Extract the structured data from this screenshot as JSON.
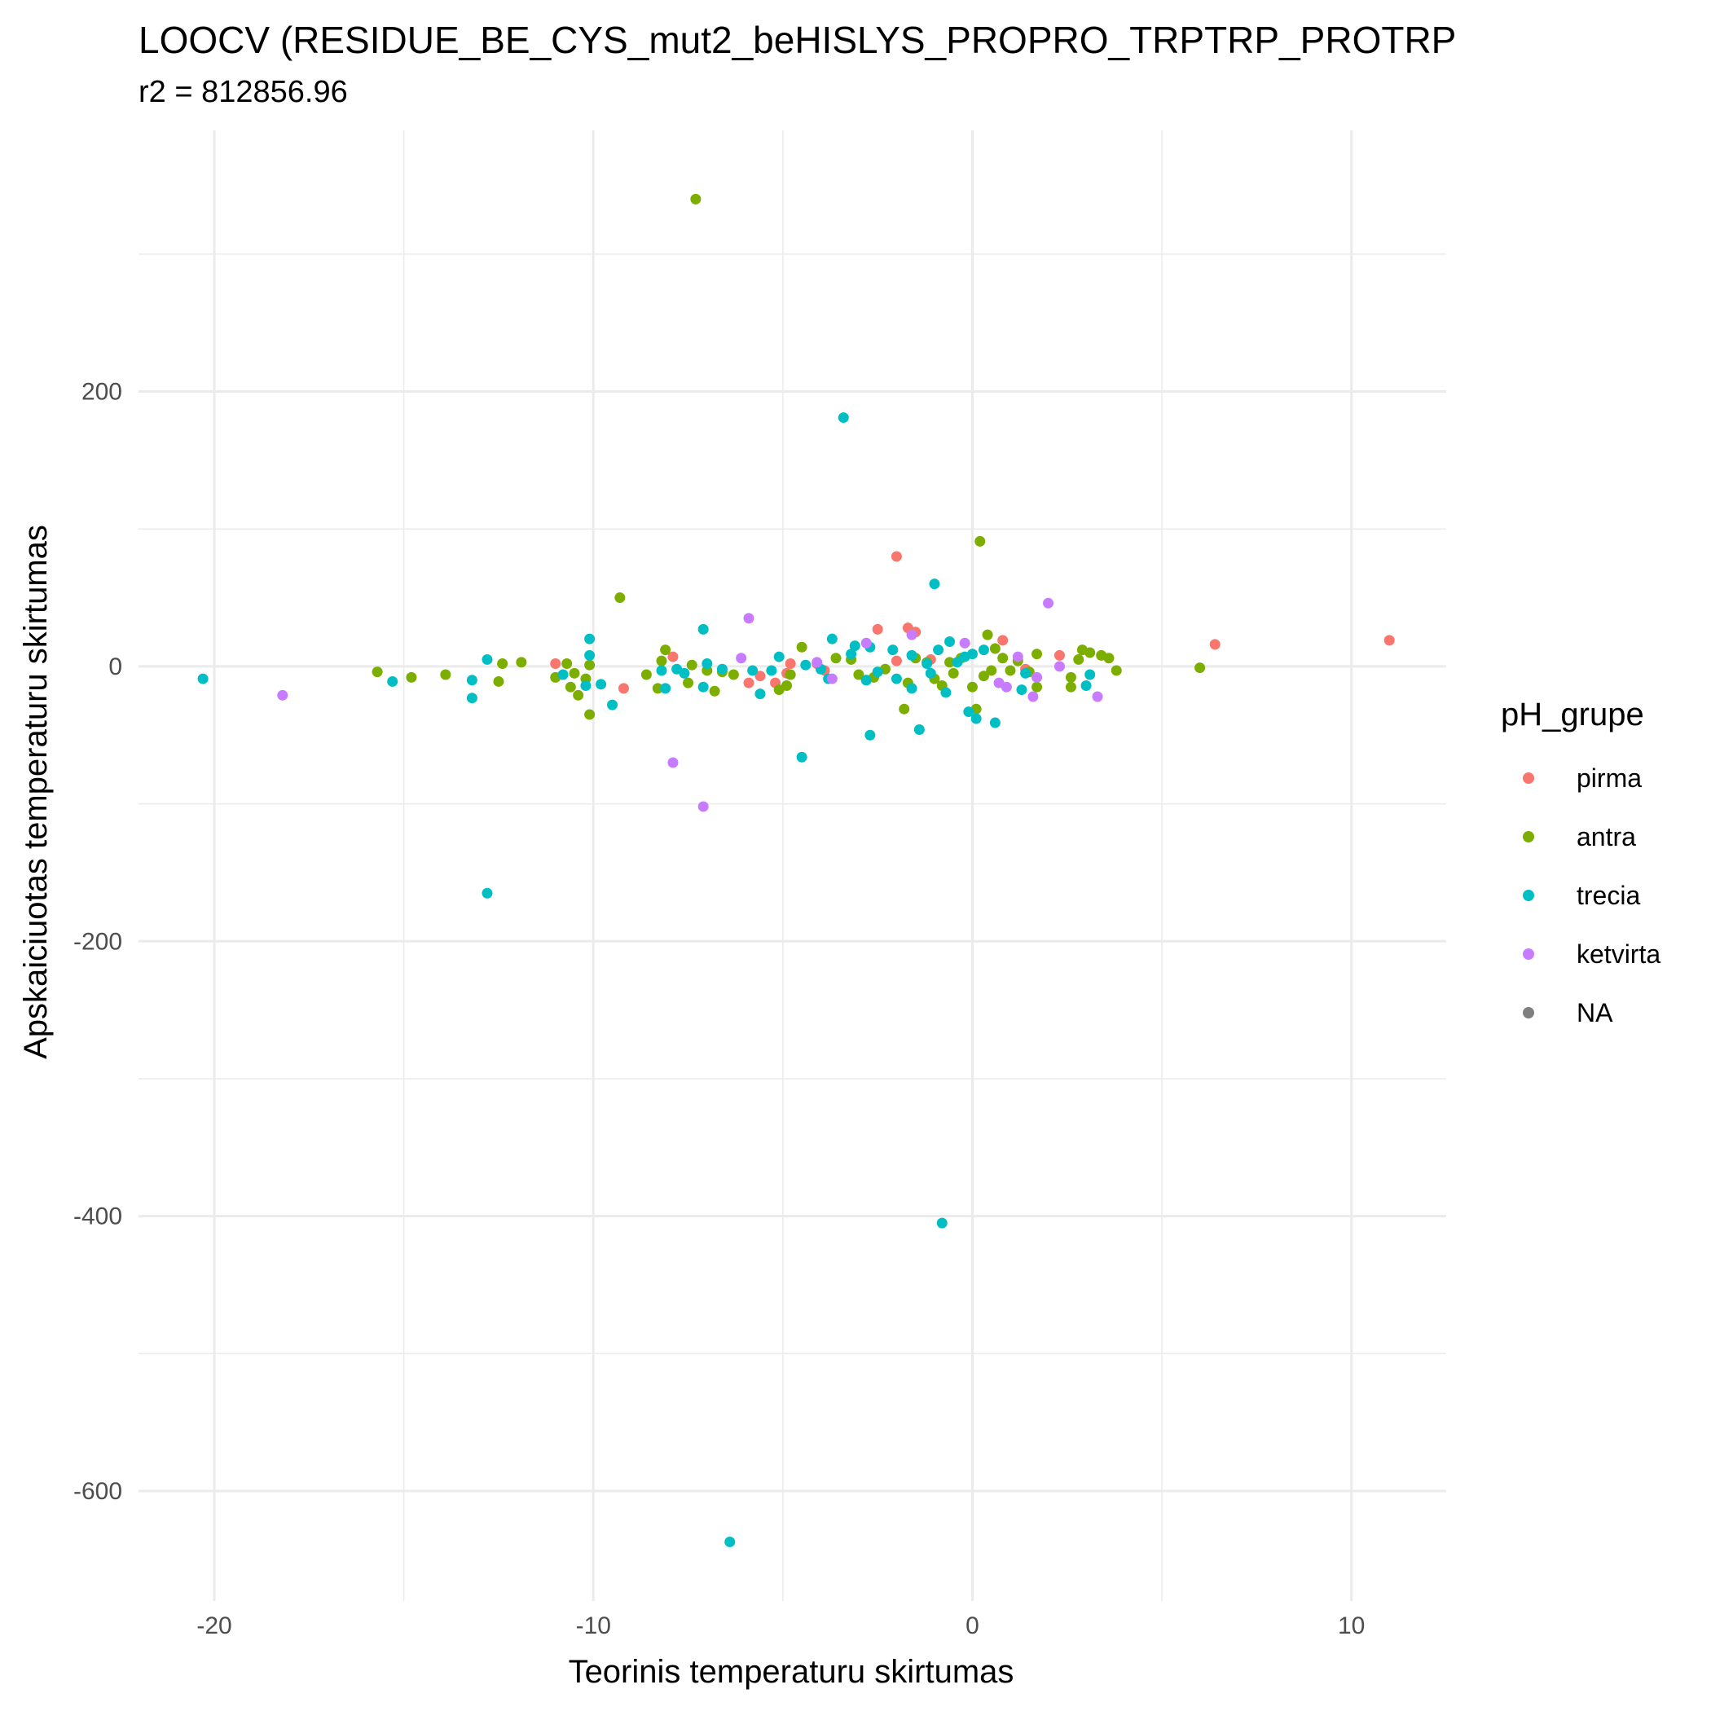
{
  "chart_data": {
    "type": "scatter",
    "title": "LOOCV (RESIDUE_BE_CYS_mut2_beHISLYS_PROPRO_TRPTRP_PROTRP",
    "subtitle": "r2 = 812856.96",
    "xlabel": "Teorinis temperaturu skirtumas",
    "ylabel": "Apskaiciuotas temperaturu skirtumas",
    "xlim": [
      -22,
      12.5
    ],
    "ylim": [
      -680,
      390
    ],
    "x_ticks": [
      -20,
      -10,
      0,
      10
    ],
    "y_ticks": [
      200,
      0,
      -200,
      -400,
      -600
    ],
    "grid": true,
    "legend": {
      "title": "pH_grupe",
      "position": "right",
      "entries": [
        {
          "label": "pirma",
          "color": "#F8766D"
        },
        {
          "label": "antra",
          "color": "#7CAE00"
        },
        {
          "label": "trecia",
          "color": "#00BFC4"
        },
        {
          "label": "ketvirta",
          "color": "#C77CFF"
        },
        {
          "label": "NA",
          "color": "#7F7F7F"
        }
      ]
    },
    "series": [
      {
        "name": "pirma",
        "color": "#F8766D",
        "points": [
          [
            -11.0,
            2
          ],
          [
            -9.2,
            -16
          ],
          [
            -7.9,
            7
          ],
          [
            -5.9,
            -12
          ],
          [
            -5.6,
            -7
          ],
          [
            -5.2,
            -12
          ],
          [
            -4.9,
            -5
          ],
          [
            -4.8,
            2
          ],
          [
            -4.1,
            2
          ],
          [
            -3.9,
            -3
          ],
          [
            -2.5,
            27
          ],
          [
            -2.0,
            80
          ],
          [
            -2.0,
            4
          ],
          [
            -1.7,
            28
          ],
          [
            -1.5,
            25
          ],
          [
            -1.1,
            5
          ],
          [
            0.8,
            19
          ],
          [
            1.4,
            -2
          ],
          [
            2.3,
            8
          ],
          [
            6.4,
            16
          ],
          [
            11.0,
            19
          ]
        ]
      },
      {
        "name": "antra",
        "color": "#7CAE00",
        "points": [
          [
            -7.3,
            340
          ],
          [
            -15.7,
            -4
          ],
          [
            -14.8,
            -8
          ],
          [
            -13.9,
            -6
          ],
          [
            -12.4,
            2
          ],
          [
            -12.5,
            -11
          ],
          [
            -11.9,
            3
          ],
          [
            -11.0,
            -8
          ],
          [
            -10.7,
            2
          ],
          [
            -10.6,
            -15
          ],
          [
            -10.5,
            -5
          ],
          [
            -10.4,
            -21
          ],
          [
            -10.2,
            -9
          ],
          [
            -10.1,
            1
          ],
          [
            -10.1,
            -35
          ],
          [
            -9.3,
            50
          ],
          [
            -8.6,
            -6
          ],
          [
            -8.3,
            -16
          ],
          [
            -8.2,
            4
          ],
          [
            -8.1,
            12
          ],
          [
            -7.5,
            -12
          ],
          [
            -7.4,
            1
          ],
          [
            -7.0,
            -3
          ],
          [
            -6.8,
            -18
          ],
          [
            -6.6,
            -4
          ],
          [
            -6.3,
            -6
          ],
          [
            -5.1,
            -17
          ],
          [
            -4.9,
            -14
          ],
          [
            -4.8,
            -6
          ],
          [
            -4.5,
            14
          ],
          [
            -3.6,
            6
          ],
          [
            -3.2,
            5
          ],
          [
            -3.0,
            -6
          ],
          [
            -2.8,
            -10
          ],
          [
            -2.6,
            -8
          ],
          [
            -2.3,
            -2
          ],
          [
            -1.8,
            -31
          ],
          [
            -1.7,
            -12
          ],
          [
            -1.5,
            6
          ],
          [
            -1.2,
            3
          ],
          [
            -1.0,
            -9
          ],
          [
            -0.8,
            -14
          ],
          [
            -0.6,
            3
          ],
          [
            -0.5,
            -5
          ],
          [
            -0.3,
            6
          ],
          [
            0.0,
            -15
          ],
          [
            0.1,
            -31
          ],
          [
            0.2,
            91
          ],
          [
            0.3,
            -7
          ],
          [
            0.4,
            23
          ],
          [
            0.5,
            -3
          ],
          [
            0.6,
            13
          ],
          [
            0.8,
            6
          ],
          [
            1.0,
            -3
          ],
          [
            1.2,
            4
          ],
          [
            1.5,
            -4
          ],
          [
            1.7,
            -15
          ],
          [
            1.7,
            9
          ],
          [
            2.6,
            -8
          ],
          [
            2.6,
            -15
          ],
          [
            2.8,
            5
          ],
          [
            2.9,
            12
          ],
          [
            3.1,
            10
          ],
          [
            3.4,
            8
          ],
          [
            3.6,
            6
          ],
          [
            3.8,
            -3
          ],
          [
            6.0,
            -1
          ]
        ]
      },
      {
        "name": "trecia",
        "color": "#00BFC4",
        "points": [
          [
            -20.3,
            -9
          ],
          [
            -15.3,
            -11
          ],
          [
            -13.2,
            -10
          ],
          [
            -13.2,
            -23
          ],
          [
            -12.8,
            5
          ],
          [
            -12.8,
            -165
          ],
          [
            -10.8,
            -6
          ],
          [
            -10.1,
            20
          ],
          [
            -10.1,
            8
          ],
          [
            -10.2,
            -14
          ],
          [
            -9.8,
            -13
          ],
          [
            -9.5,
            -28
          ],
          [
            -8.2,
            -3
          ],
          [
            -8.1,
            -16
          ],
          [
            -7.8,
            -2
          ],
          [
            -7.6,
            -5
          ],
          [
            -7.1,
            27
          ],
          [
            -7.1,
            -15
          ],
          [
            -7.0,
            2
          ],
          [
            -6.6,
            -2
          ],
          [
            -6.4,
            -637
          ],
          [
            -5.8,
            -3
          ],
          [
            -5.6,
            -20
          ],
          [
            -5.3,
            -3
          ],
          [
            -5.1,
            7
          ],
          [
            -4.5,
            -66
          ],
          [
            -4.4,
            1
          ],
          [
            -4.0,
            -2
          ],
          [
            -3.8,
            -9
          ],
          [
            -3.7,
            20
          ],
          [
            -3.4,
            181
          ],
          [
            -3.2,
            9
          ],
          [
            -3.1,
            15
          ],
          [
            -2.8,
            -10
          ],
          [
            -2.7,
            14
          ],
          [
            -2.7,
            -50
          ],
          [
            -2.5,
            -4
          ],
          [
            -2.1,
            12
          ],
          [
            -2.0,
            -9
          ],
          [
            -1.6,
            -16
          ],
          [
            -1.6,
            8
          ],
          [
            -1.4,
            -46
          ],
          [
            -1.2,
            2
          ],
          [
            -1.1,
            -5
          ],
          [
            -1.0,
            60
          ],
          [
            -0.9,
            12
          ],
          [
            -0.8,
            -405
          ],
          [
            -0.7,
            -19
          ],
          [
            -0.6,
            18
          ],
          [
            -0.4,
            3
          ],
          [
            -0.2,
            7
          ],
          [
            -0.1,
            -33
          ],
          [
            0.0,
            9
          ],
          [
            0.1,
            -38
          ],
          [
            0.3,
            12
          ],
          [
            0.6,
            -41
          ],
          [
            1.3,
            -17
          ],
          [
            1.4,
            -5
          ],
          [
            3.0,
            -14
          ],
          [
            3.1,
            -6
          ]
        ]
      },
      {
        "name": "ketvirta",
        "color": "#C77CFF",
        "points": [
          [
            -18.2,
            -21
          ],
          [
            -7.9,
            -70
          ],
          [
            -7.1,
            -102
          ],
          [
            -6.1,
            6
          ],
          [
            -5.9,
            35
          ],
          [
            -4.1,
            3
          ],
          [
            -3.7,
            -9
          ],
          [
            -2.8,
            17
          ],
          [
            -1.6,
            23
          ],
          [
            -0.2,
            17
          ],
          [
            0.7,
            -12
          ],
          [
            0.9,
            -15
          ],
          [
            1.2,
            7
          ],
          [
            1.6,
            -22
          ],
          [
            1.7,
            -8
          ],
          [
            2.0,
            46
          ],
          [
            2.3,
            0
          ],
          [
            3.3,
            -22
          ]
        ]
      }
    ]
  }
}
